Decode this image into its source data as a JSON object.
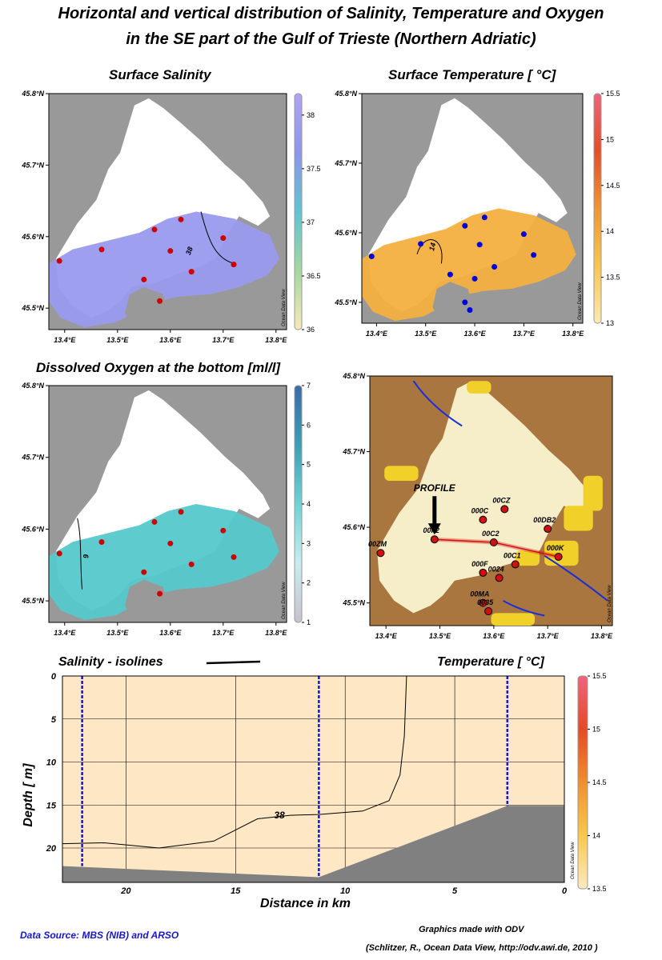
{
  "title_line1": "Horizontal and vertical distribution of Salinity, Temperature and Oxygen",
  "title_line2": "in the SE part of the Gulf of Trieste (Northern Adriatic)",
  "colors": {
    "land": "#999999",
    "sal_field": "#9a9aee",
    "temp_field": "#f4b040",
    "oxy_field": "#55c8cc",
    "section_field": "#fde7c4",
    "bottom": "#808080",
    "dot_red": "#cc0000",
    "dot_blue": "#0000dd",
    "watermark": "Ocean Data View"
  },
  "chart_data": [
    {
      "type": "scatter",
      "title": "Surface Salinity",
      "x_ticks": [
        "13.4°E",
        "13.5°E",
        "13.6°E",
        "13.7°E",
        "13.8°E"
      ],
      "y_ticks": [
        "45.8°N",
        "45.7°N",
        "45.6°N",
        "45.5°N"
      ],
      "xlim": [
        13.37,
        13.82
      ],
      "ylim": [
        45.47,
        45.8
      ],
      "colorbar": {
        "ticks": [
          "38",
          "37.5",
          "37",
          "36.5",
          "36"
        ],
        "range": [
          36,
          38.2
        ],
        "colors": [
          "#f7e9b8",
          "#a5d8a0",
          "#5fc3d5",
          "#8d96ea",
          "#b0a3f2"
        ]
      },
      "isolines": [
        {
          "label": "38"
        }
      ],
      "stations": {
        "color": "red",
        "points": [
          [
            13.39,
            45.566
          ],
          [
            13.47,
            45.582
          ],
          [
            13.55,
            45.54
          ],
          [
            13.57,
            45.61
          ],
          [
            13.58,
            45.51
          ],
          [
            13.6,
            45.58
          ],
          [
            13.62,
            45.624
          ],
          [
            13.64,
            45.551
          ],
          [
            13.7,
            45.598
          ],
          [
            13.72,
            45.561
          ]
        ]
      }
    },
    {
      "type": "scatter",
      "title": "Surface Temperature [ °C]",
      "x_ticks": [
        "13.4°E",
        "13.5°E",
        "13.6°E",
        "13.7°E",
        "13.8°E"
      ],
      "y_ticks": [
        "45.8°N",
        "45.7°N",
        "45.6°N",
        "45.5°N"
      ],
      "xlim": [
        13.37,
        13.82
      ],
      "ylim": [
        45.47,
        45.8
      ],
      "colorbar": {
        "ticks": [
          "15.5",
          "15",
          "14.5",
          "14",
          "13.5",
          "13"
        ],
        "range": [
          13,
          15.5
        ],
        "colors": [
          "#fbeab0",
          "#f8c64f",
          "#f19433",
          "#e34e26",
          "#f0637c"
        ]
      },
      "isolines": [
        {
          "label": "14"
        }
      ],
      "stations": {
        "color": "blue",
        "points": [
          [
            13.39,
            45.566
          ],
          [
            13.49,
            45.584
          ],
          [
            13.55,
            45.54
          ],
          [
            13.58,
            45.61
          ],
          [
            13.58,
            45.5
          ],
          [
            13.59,
            45.489
          ],
          [
            13.6,
            45.534
          ],
          [
            13.61,
            45.583
          ],
          [
            13.62,
            45.622
          ],
          [
            13.64,
            45.551
          ],
          [
            13.7,
            45.598
          ],
          [
            13.72,
            45.568
          ]
        ]
      }
    },
    {
      "type": "scatter",
      "title": "Dissolved Oxygen at the bottom [ml/l]",
      "x_ticks": [
        "13.4°E",
        "13.5°E",
        "13.6°E",
        "13.7°E",
        "13.8°E"
      ],
      "y_ticks": [
        "45.8°N",
        "45.7°N",
        "45.6°N",
        "45.5°N"
      ],
      "xlim": [
        13.37,
        13.82
      ],
      "ylim": [
        45.47,
        45.8
      ],
      "colorbar": {
        "ticks": [
          "7",
          "6",
          "5",
          "4",
          "3",
          "2",
          "1"
        ],
        "range": [
          1,
          7
        ],
        "colors": [
          "#c8c0d0",
          "#c8eeee",
          "#6ed2d6",
          "#3a9fb8",
          "#3b6aa8"
        ]
      },
      "isolines": [
        {
          "label": "6"
        }
      ],
      "stations": {
        "color": "red",
        "points": [
          [
            13.39,
            45.566
          ],
          [
            13.47,
            45.582
          ],
          [
            13.55,
            45.54
          ],
          [
            13.57,
            45.61
          ],
          [
            13.58,
            45.51
          ],
          [
            13.6,
            45.58
          ],
          [
            13.62,
            45.624
          ],
          [
            13.64,
            45.551
          ],
          [
            13.7,
            45.598
          ],
          [
            13.72,
            45.561
          ]
        ]
      }
    },
    {
      "type": "scatter",
      "title": "",
      "x_ticks": [
        "13.4°E",
        "13.5°E",
        "13.6°E",
        "13.7°E",
        "13.8°E"
      ],
      "y_ticks": [
        "45.8°N",
        "45.7°N",
        "45.6°N",
        "45.5°N"
      ],
      "xlim": [
        13.37,
        13.82
      ],
      "ylim": [
        45.47,
        45.8
      ],
      "annotation": "PROFILE",
      "stations": [
        {
          "name": "00ZM",
          "lon": 13.39,
          "lat": 45.566
        },
        {
          "name": "00F2",
          "lon": 13.49,
          "lat": 45.584
        },
        {
          "name": "000C",
          "lon": 13.58,
          "lat": 45.61
        },
        {
          "name": "00CZ",
          "lon": 13.62,
          "lat": 45.624
        },
        {
          "name": "00C2",
          "lon": 13.6,
          "lat": 45.58
        },
        {
          "name": "00C1",
          "lon": 13.64,
          "lat": 45.551
        },
        {
          "name": "00DB2",
          "lon": 13.7,
          "lat": 45.598
        },
        {
          "name": "000K",
          "lon": 13.72,
          "lat": 45.561
        },
        {
          "name": "000F",
          "lon": 13.58,
          "lat": 45.54
        },
        {
          "name": "0024",
          "lon": 13.61,
          "lat": 45.533
        },
        {
          "name": "00MA",
          "lon": 13.58,
          "lat": 45.5
        },
        {
          "name": "0035",
          "lon": 13.59,
          "lat": 45.489
        }
      ]
    },
    {
      "type": "area",
      "left_heading": "Salinity - isolines",
      "right_heading": "Temperature  [ °C]",
      "xlabel": "Distance in km",
      "ylabel": "Depth  [ m]",
      "x_ticks": [
        20,
        15,
        10,
        5,
        0
      ],
      "y_ticks": [
        0,
        5,
        10,
        15,
        20
      ],
      "xlim": [
        22.9,
        0
      ],
      "ylim": [
        0,
        24
      ],
      "colorbar": {
        "ticks": [
          "15.5",
          "15",
          "14.5",
          "14",
          "13.5"
        ],
        "range": [
          13.5,
          15.5
        ]
      },
      "isolines": [
        {
          "label": "38",
          "points": [
            [
              22.9,
              19.5
            ],
            [
              21,
              19.4
            ],
            [
              18.5,
              20.0
            ],
            [
              16,
              19.2
            ],
            [
              14,
              16.6
            ],
            [
              12.5,
              16.2
            ],
            [
              11.2,
              16.1
            ],
            [
              9.2,
              15.7
            ],
            [
              8,
              14.5
            ],
            [
              7.5,
              11.5
            ],
            [
              7.3,
              7
            ],
            [
              7.2,
              0
            ]
          ]
        }
      ],
      "stations_km": [
        22,
        11.2,
        2.6
      ],
      "bottom_profile": [
        [
          22.9,
          22.1
        ],
        [
          11.2,
          23.4
        ],
        [
          2.6,
          15.1
        ],
        [
          0,
          15.1
        ]
      ]
    }
  ],
  "footer": {
    "source": "Data Source: MBS (NIB) and ARSO",
    "made_with": "Graphics made with ODV",
    "credit": "(Schlitzer, R., Ocean Data View, http://odv.awi.de, 2010 )"
  }
}
